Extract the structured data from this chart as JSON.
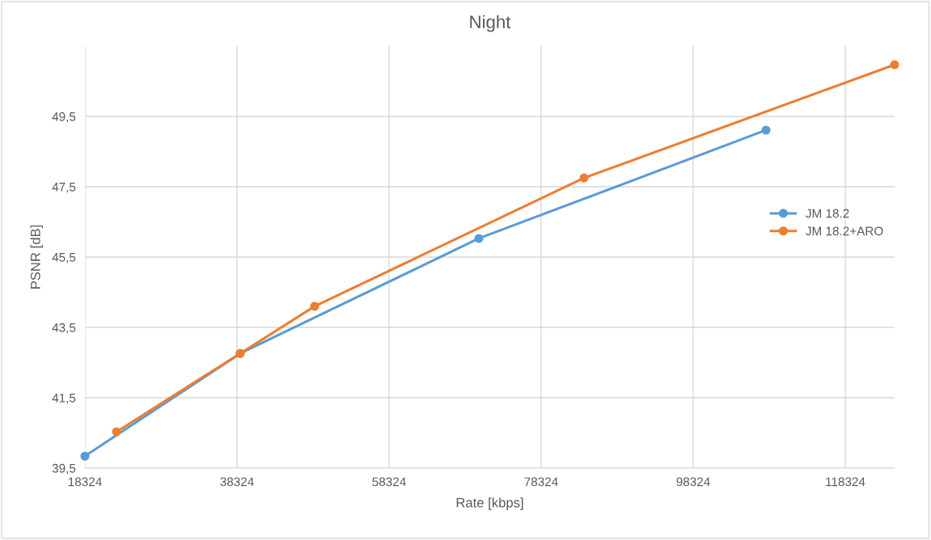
{
  "chart_data": {
    "type": "line",
    "title": "Night",
    "xlabel": "Rate [kbps]",
    "ylabel": "PSNR [dB]",
    "xlim": [
      18324,
      124812
    ],
    "xticks": [
      18324,
      38324,
      58324,
      78324,
      98324,
      118324
    ],
    "ylim": [
      39.5,
      51.5
    ],
    "yticks": [
      {
        "value": 39.5,
        "label": "39,5"
      },
      {
        "value": 41.5,
        "label": "41,5"
      },
      {
        "value": 43.5,
        "label": "43,5"
      },
      {
        "value": 45.5,
        "label": "45,5"
      },
      {
        "value": 47.5,
        "label": "47,5"
      },
      {
        "value": 49.5,
        "label": "49,5"
      }
    ],
    "grid": true,
    "legend": "right",
    "marker": "circle",
    "line_style": "solid",
    "series": [
      {
        "name": "JM 18.2",
        "color": "#5b9bd5",
        "x": [
          18324,
          38749,
          70132,
          107897
        ],
        "values": [
          39.84,
          42.76,
          46.03,
          49.11
        ]
      },
      {
        "name": "JM 18.2+ARO",
        "color": "#ed7d31",
        "x": [
          22473,
          38749,
          48536,
          83962,
          124812
        ],
        "values": [
          40.53,
          42.76,
          44.1,
          47.75,
          50.97
        ]
      }
    ]
  }
}
